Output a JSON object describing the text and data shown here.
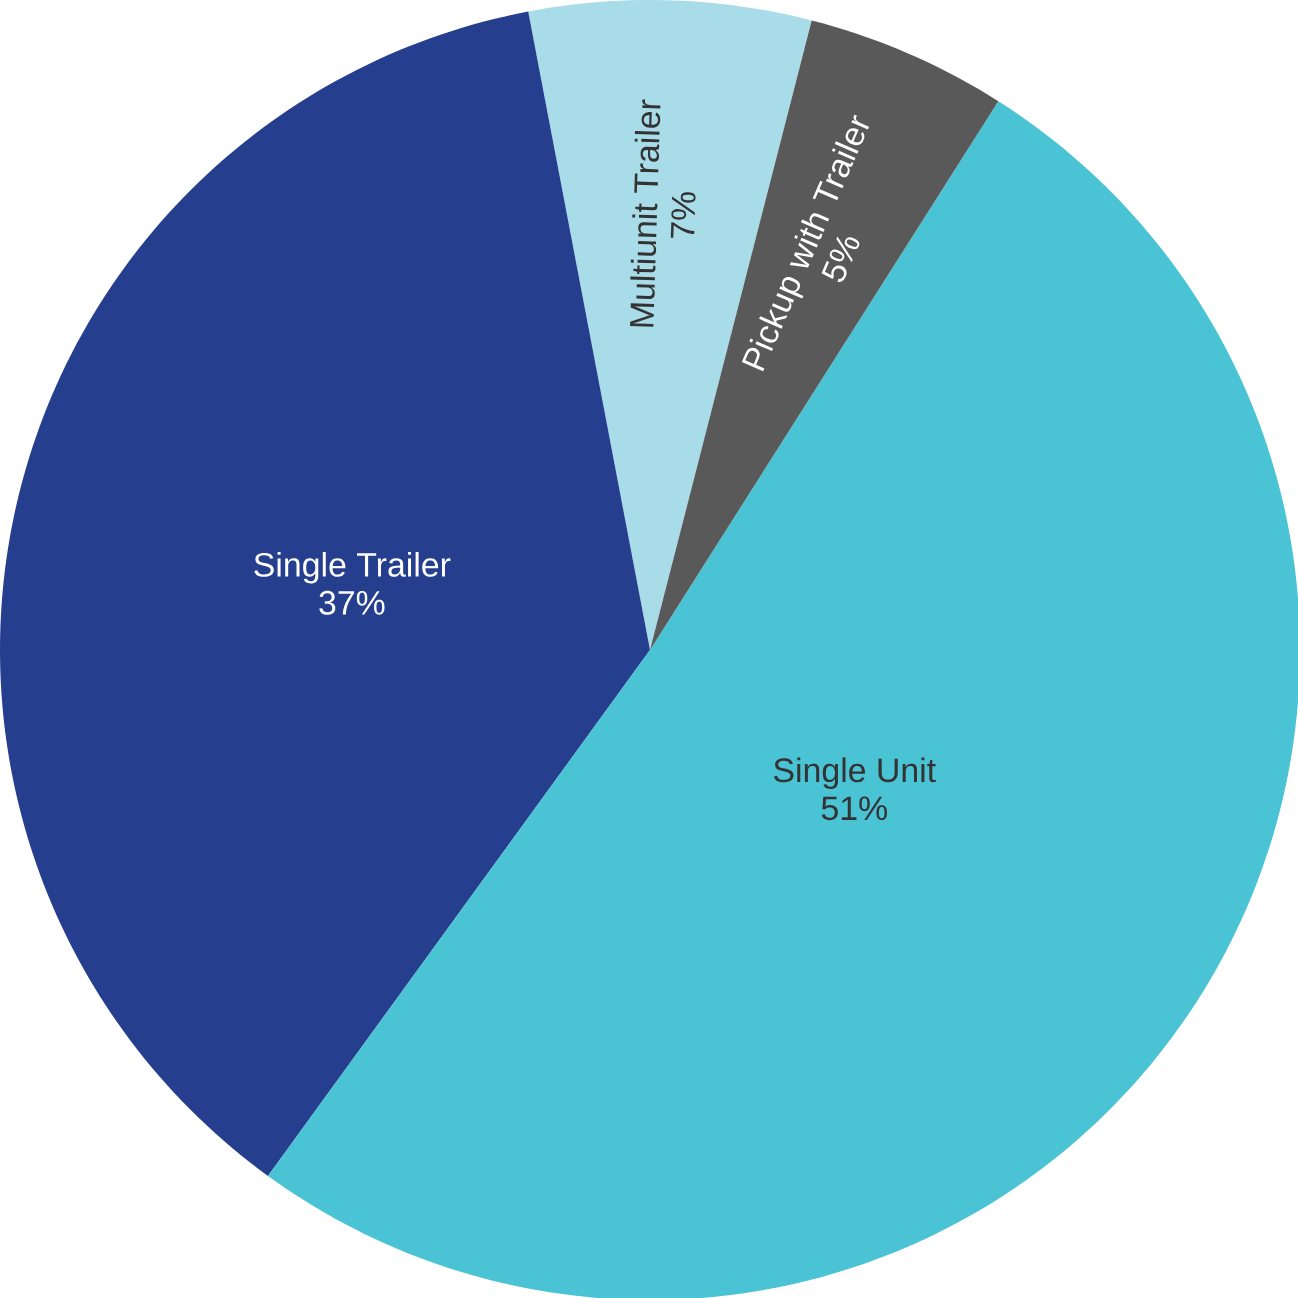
{
  "chart_data": {
    "type": "pie",
    "categories": [
      "Multiunit Trailer",
      "Single Trailer",
      "Single Unit",
      "Pickup with Trailer"
    ],
    "values": [
      7,
      37,
      51,
      5
    ],
    "colors": [
      "#a8dce8",
      "#253f8e",
      "#4ac3d5",
      "#595959"
    ],
    "value_labels": [
      "7%",
      "37%",
      "51%",
      "5%"
    ]
  }
}
